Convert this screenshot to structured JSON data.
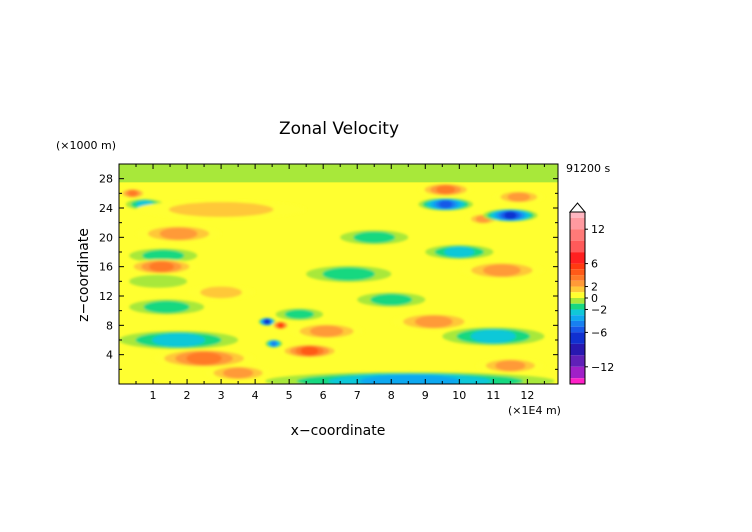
{
  "chart_data": {
    "type": "heatmap",
    "title": "Zonal Velocity",
    "xlabel": "x−coordinate",
    "ylabel": "z−coordinate",
    "x_unit": "(×1E4 m)",
    "y_unit": "(×1000 m)",
    "time_label": "91200 s",
    "xlim": [
      0,
      12.9
    ],
    "ylim": [
      0,
      30
    ],
    "x_ticks": [
      "1",
      "2",
      "3",
      "4",
      "5",
      "6",
      "7",
      "8",
      "9",
      "10",
      "11",
      "12"
    ],
    "y_ticks": [
      "4",
      "8",
      "12",
      "16",
      "20",
      "24",
      "28"
    ],
    "colorbar": {
      "tick_labels": [
        "12",
        "6",
        "2",
        "0",
        "−2",
        "−6",
        "−12"
      ],
      "tick_values": [
        12,
        6,
        2,
        0,
        -2,
        -6,
        -12
      ],
      "levels": [
        {
          "min": 14,
          "color": "#ffb6c1"
        },
        {
          "min": 12,
          "max": 14,
          "color": "#ff9aa0"
        },
        {
          "min": 10,
          "max": 12,
          "color": "#ff7a78"
        },
        {
          "min": 8,
          "max": 10,
          "color": "#ff5a5a"
        },
        {
          "min": 6,
          "max": 8,
          "color": "#ff2020"
        },
        {
          "min": 5,
          "max": 6,
          "color": "#ff3a10"
        },
        {
          "min": 4,
          "max": 5,
          "color": "#ff5a18"
        },
        {
          "min": 3,
          "max": 4,
          "color": "#ff7a28"
        },
        {
          "min": 2,
          "max": 3,
          "color": "#ff9a38"
        },
        {
          "min": 1,
          "max": 2,
          "color": "#ffc838"
        },
        {
          "min": 0,
          "max": 1,
          "color": "#ffff30"
        },
        {
          "min": -1,
          "max": 0,
          "color": "#a8e83a"
        },
        {
          "min": -2,
          "max": -1,
          "color": "#18d880"
        },
        {
          "min": -3,
          "max": -2,
          "color": "#10c8d8"
        },
        {
          "min": -4,
          "max": -3,
          "color": "#10a8f0"
        },
        {
          "min": -5,
          "max": -4,
          "color": "#1880f0"
        },
        {
          "min": -6,
          "max": -5,
          "color": "#1858e8"
        },
        {
          "min": -8,
          "max": -6,
          "color": "#1030d0"
        },
        {
          "min": -10,
          "max": -8,
          "color": "#2818b0"
        },
        {
          "min": -12,
          "max": -10,
          "color": "#6020b8"
        },
        {
          "min": -14,
          "max": -12,
          "color": "#a020c8"
        },
        {
          "max": -14,
          "color": "#ff20c8"
        }
      ]
    },
    "bands": [
      {
        "x0": 0.0,
        "x1": 0.8,
        "z": 26,
        "v": 4
      },
      {
        "x0": 0.2,
        "x1": 1.3,
        "z": 24.5,
        "v": -3
      },
      {
        "x0": 0.5,
        "x1": 5.5,
        "z": 23.8,
        "v": 2
      },
      {
        "x0": 0.5,
        "x1": 3.0,
        "z": 20.5,
        "v": 3
      },
      {
        "x0": 0.3,
        "x1": 2.3,
        "z": 17.5,
        "v": -2
      },
      {
        "x0": 0.2,
        "x1": 2.3,
        "z": 16,
        "v": 4
      },
      {
        "x0": 0.3,
        "x1": 2.0,
        "z": 14,
        "v": -1
      },
      {
        "x0": 2.0,
        "x1": 4.0,
        "z": 12.5,
        "v": 2
      },
      {
        "x0": 0.3,
        "x1": 2.5,
        "z": 10.5,
        "v": -2
      },
      {
        "x0": 0.0,
        "x1": 3.5,
        "z": 6,
        "v": -3
      },
      {
        "x0": 1.0,
        "x1": 4.0,
        "z": 3.5,
        "v": 4
      },
      {
        "x0": 2.5,
        "x1": 4.5,
        "z": 1.5,
        "v": 3
      },
      {
        "x0": 4.6,
        "x1": 6.0,
        "z": 9.5,
        "v": -2
      },
      {
        "x0": 4.7,
        "x1": 6.5,
        "z": 4.5,
        "v": 5
      },
      {
        "x0": 5.0,
        "x1": 7.2,
        "z": 7.2,
        "v": 3
      },
      {
        "x0": 8.8,
        "x1": 10.4,
        "z": 26.5,
        "v": 4
      },
      {
        "x0": 8.8,
        "x1": 10.4,
        "z": 24.5,
        "v": -6
      },
      {
        "x0": 10.2,
        "x1": 11.2,
        "z": 22.5,
        "v": 3
      },
      {
        "x0": 10.7,
        "x1": 12.3,
        "z": 23,
        "v": -7
      },
      {
        "x0": 11.0,
        "x1": 12.5,
        "z": 25.5,
        "v": 3
      },
      {
        "x0": 9.0,
        "x1": 11.0,
        "z": 18,
        "v": -3
      },
      {
        "x0": 10.0,
        "x1": 12.5,
        "z": 15.5,
        "v": 3
      },
      {
        "x0": 8.0,
        "x1": 10.5,
        "z": 8.5,
        "v": 3
      },
      {
        "x0": 9.5,
        "x1": 12.5,
        "z": 6.5,
        "v": -3
      },
      {
        "x0": 10.5,
        "x1": 12.5,
        "z": 2.5,
        "v": 3
      },
      {
        "x0": 6.5,
        "x1": 8.5,
        "z": 20,
        "v": -2
      },
      {
        "x0": 7.0,
        "x1": 9.0,
        "z": 11.5,
        "v": -2
      },
      {
        "x0": 5.5,
        "x1": 8.0,
        "z": 15,
        "v": -2
      },
      {
        "x0": 4.3,
        "x1": 12.8,
        "z": 0.4,
        "v": -4
      },
      {
        "x0": 4.1,
        "x1": 4.6,
        "z": 8.5,
        "v": -8
      },
      {
        "x0": 4.3,
        "x1": 4.8,
        "z": 5.5,
        "v": -5
      },
      {
        "x0": 4.5,
        "x1": 5.0,
        "z": 8.0,
        "v": 6
      }
    ]
  }
}
